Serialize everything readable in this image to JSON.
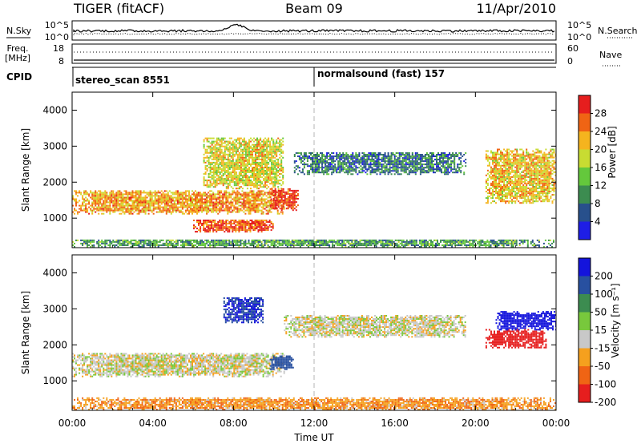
{
  "header": {
    "radar": "TIGER (fitACF)",
    "beam": "Beam 09",
    "date": "11/Apr/2010"
  },
  "top_panels": {
    "nsky_label": "N.Sky",
    "nsearch_label": "N.Search",
    "noise_ticks_left": [
      "10^5",
      "10^0"
    ],
    "noise_ticks_right": [
      "10^5",
      "10^0"
    ],
    "freq_label": "Freq.",
    "freq_unit": "[MHz]",
    "freq_ticks": [
      "18",
      "8"
    ],
    "nave_label": "Nave",
    "nave_ticks": [
      "60",
      "0"
    ],
    "cpid_label": "CPID",
    "cpid_segments": [
      {
        "text": "stereo_scan 8551",
        "start_hour": 0
      },
      {
        "text": "normalsound (fast) 157",
        "start_hour": 12
      }
    ]
  },
  "chart_data": [
    {
      "type": "heatmap",
      "name": "power",
      "xlabel": "Time UT",
      "ylabel": "Slant Range [km]",
      "xlim": [
        0,
        24
      ],
      "ylim": [
        180,
        4500
      ],
      "x_ticks": [
        0,
        4,
        8,
        12,
        16,
        20,
        24
      ],
      "x_tick_labels": [
        "00:00",
        "04:00",
        "08:00",
        "12:00",
        "16:00",
        "20:00",
        "00:00"
      ],
      "y_ticks": [
        1000,
        2000,
        3000,
        4000
      ],
      "y_tick_labels": [
        "1000",
        "2000",
        "3000",
        "4000"
      ],
      "colorbar": {
        "label": "Power [dB]",
        "ticks": [
          "28",
          "24",
          "20",
          "16",
          "12",
          "8",
          "4"
        ],
        "colors": [
          "#1e1ee6",
          "#28508c",
          "#3c8c50",
          "#64c83c",
          "#c8dc32",
          "#f5b41e",
          "#f06414",
          "#e61e1e"
        ]
      },
      "regions": [
        {
          "feature": "dayside band",
          "t_start": 0.0,
          "t_end": 10.5,
          "range_start": 1100,
          "range_end": 1750,
          "level": 0.72
        },
        {
          "feature": "low band",
          "t_start": 6.0,
          "t_end": 10.0,
          "range_start": 600,
          "range_end": 950,
          "level": 0.85
        },
        {
          "feature": "spread echo 08UT",
          "t_start": 6.5,
          "t_end": 10.5,
          "range_start": 1800,
          "range_end": 3200,
          "level": 0.6
        },
        {
          "feature": "peak 10-11UT",
          "t_start": 9.8,
          "t_end": 11.2,
          "range_start": 1200,
          "range_end": 1800,
          "level": 0.9
        },
        {
          "feature": "midday band",
          "t_start": 11.0,
          "t_end": 19.5,
          "range_start": 2200,
          "range_end": 2800,
          "level": 0.25
        },
        {
          "feature": "near-range clutter",
          "t_start": 0.0,
          "t_end": 24.0,
          "range_start": 180,
          "range_end": 400,
          "level": 0.35
        },
        {
          "feature": "late echo",
          "t_start": 20.5,
          "t_end": 24.0,
          "range_start": 1400,
          "range_end": 2900,
          "level": 0.65
        }
      ],
      "vertical_marker_hour": 12
    },
    {
      "type": "heatmap",
      "name": "velocity",
      "xlabel": "Time UT",
      "ylabel": "Slant Range [km]",
      "xlim": [
        0,
        24
      ],
      "ylim": [
        180,
        4500
      ],
      "x_ticks": [
        0,
        4,
        8,
        12,
        16,
        20,
        24
      ],
      "x_tick_labels": [
        "00:00",
        "04:00",
        "08:00",
        "12:00",
        "16:00",
        "20:00",
        "00:00"
      ],
      "y_ticks": [
        1000,
        2000,
        3000,
        4000
      ],
      "y_tick_labels": [
        "1000",
        "2000",
        "3000",
        "4000"
      ],
      "colorbar": {
        "label": "Velocity [m s⁻¹]",
        "ticks": [
          "200",
          "100",
          "50",
          "15",
          "-15",
          "-50",
          "-100",
          "-200"
        ],
        "colors": [
          "#1414dc",
          "#2850a0",
          "#3c8c50",
          "#78c83c",
          "#c8c8c8",
          "#f5a01e",
          "#f06414",
          "#e61e1e"
        ]
      },
      "regions": [
        {
          "feature": "dayside band (ground scatter)",
          "t_start": 0.0,
          "t_end": 10.5,
          "range_start": 1100,
          "range_end": 1750,
          "velocity": 0
        },
        {
          "feature": "midday band (ground scatter)",
          "t_start": 10.5,
          "t_end": 19.5,
          "range_start": 2200,
          "range_end": 2800,
          "velocity": 0
        },
        {
          "feature": "blue patch 08UT",
          "t_start": 7.5,
          "t_end": 9.5,
          "range_start": 2600,
          "range_end": 3300,
          "velocity": 150
        },
        {
          "feature": "blue patch 10UT",
          "t_start": 9.8,
          "t_end": 11.0,
          "range_start": 1300,
          "range_end": 1700,
          "velocity": 120
        },
        {
          "feature": "late westward flow",
          "t_start": 20.5,
          "t_end": 23.5,
          "range_start": 1900,
          "range_end": 2400,
          "velocity": -180
        },
        {
          "feature": "late eastward flow",
          "t_start": 21.0,
          "t_end": 24.0,
          "range_start": 2400,
          "range_end": 2900,
          "velocity": 180
        },
        {
          "feature": "near-range mixed",
          "t_start": 0.0,
          "t_end": 24.0,
          "range_start": 180,
          "range_end": 500,
          "velocity": -40
        }
      ],
      "vertical_marker_hour": 12
    }
  ]
}
